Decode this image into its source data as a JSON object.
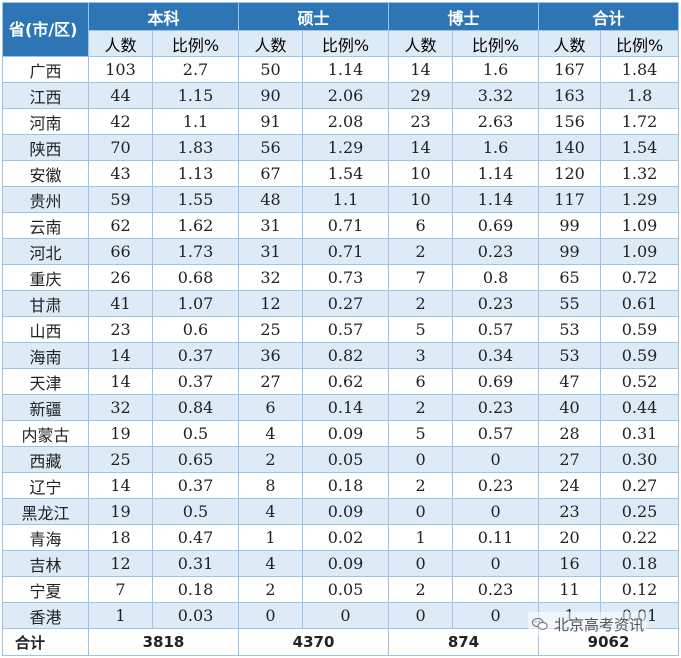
{
  "header": {
    "province_label": "省(市/区)",
    "groups": [
      "本科",
      "硕士",
      "博士",
      "合计"
    ],
    "sub_count": "人数",
    "sub_ratio": "比例%"
  },
  "rows": [
    {
      "name": "广西",
      "values": [
        "103",
        "2.7",
        "50",
        "1.14",
        "14",
        "1.6",
        "167",
        "1.84"
      ]
    },
    {
      "name": "江西",
      "values": [
        "44",
        "1.15",
        "90",
        "2.06",
        "29",
        "3.32",
        "163",
        "1.8"
      ]
    },
    {
      "name": "河南",
      "values": [
        "42",
        "1.1",
        "91",
        "2.08",
        "23",
        "2.63",
        "156",
        "1.72"
      ]
    },
    {
      "name": "陕西",
      "values": [
        "70",
        "1.83",
        "56",
        "1.29",
        "14",
        "1.6",
        "140",
        "1.54"
      ]
    },
    {
      "name": "安徽",
      "values": [
        "43",
        "1.13",
        "67",
        "1.54",
        "10",
        "1.14",
        "120",
        "1.32"
      ]
    },
    {
      "name": "贵州",
      "values": [
        "59",
        "1.55",
        "48",
        "1.1",
        "10",
        "1.14",
        "117",
        "1.29"
      ]
    },
    {
      "name": "云南",
      "values": [
        "62",
        "1.62",
        "31",
        "0.71",
        "6",
        "0.69",
        "99",
        "1.09"
      ]
    },
    {
      "name": "河北",
      "values": [
        "66",
        "1.73",
        "31",
        "0.71",
        "2",
        "0.23",
        "99",
        "1.09"
      ]
    },
    {
      "name": "重庆",
      "values": [
        "26",
        "0.68",
        "32",
        "0.73",
        "7",
        "0.8",
        "65",
        "0.72"
      ]
    },
    {
      "name": "甘肃",
      "values": [
        "41",
        "1.07",
        "12",
        "0.27",
        "2",
        "0.23",
        "55",
        "0.61"
      ]
    },
    {
      "name": "山西",
      "values": [
        "23",
        "0.6",
        "25",
        "0.57",
        "5",
        "0.57",
        "53",
        "0.59"
      ]
    },
    {
      "name": "海南",
      "values": [
        "14",
        "0.37",
        "36",
        "0.82",
        "3",
        "0.34",
        "53",
        "0.59"
      ]
    },
    {
      "name": "天津",
      "values": [
        "14",
        "0.37",
        "27",
        "0.62",
        "6",
        "0.69",
        "47",
        "0.52"
      ]
    },
    {
      "name": "新疆",
      "values": [
        "32",
        "0.84",
        "6",
        "0.14",
        "2",
        "0.23",
        "40",
        "0.44"
      ]
    },
    {
      "name": "内蒙古",
      "values": [
        "19",
        "0.5",
        "4",
        "0.09",
        "5",
        "0.57",
        "28",
        "0.31"
      ]
    },
    {
      "name": "西藏",
      "values": [
        "25",
        "0.65",
        "2",
        "0.05",
        "0",
        "0",
        "27",
        "0.30"
      ]
    },
    {
      "name": "辽宁",
      "values": [
        "14",
        "0.37",
        "8",
        "0.18",
        "2",
        "0.23",
        "24",
        "0.27"
      ]
    },
    {
      "name": "黑龙江",
      "values": [
        "19",
        "0.5",
        "4",
        "0.09",
        "0",
        "0",
        "23",
        "0.25"
      ]
    },
    {
      "name": "青海",
      "values": [
        "18",
        "0.47",
        "1",
        "0.02",
        "1",
        "0.11",
        "20",
        "0.22"
      ]
    },
    {
      "name": "吉林",
      "values": [
        "12",
        "0.31",
        "4",
        "0.09",
        "0",
        "0",
        "16",
        "0.18"
      ]
    },
    {
      "name": "宁夏",
      "values": [
        "7",
        "0.18",
        "2",
        "0.05",
        "2",
        "0.23",
        "11",
        "0.12"
      ]
    },
    {
      "name": "香港",
      "values": [
        "1",
        "0.03",
        "0",
        "0",
        "0",
        "0",
        "1",
        "0.01"
      ]
    }
  ],
  "total": {
    "label": "合计",
    "values": [
      "3818",
      "4370",
      "874",
      "9062"
    ]
  },
  "watermark": {
    "text": "北京高考资讯",
    "icon": "wechat-icon"
  },
  "colors": {
    "header_bg": "#2e75b6",
    "subheader_bg": "#ddebf7",
    "stripe_bg": "#ddebf7",
    "border": "#9dc3e6"
  }
}
